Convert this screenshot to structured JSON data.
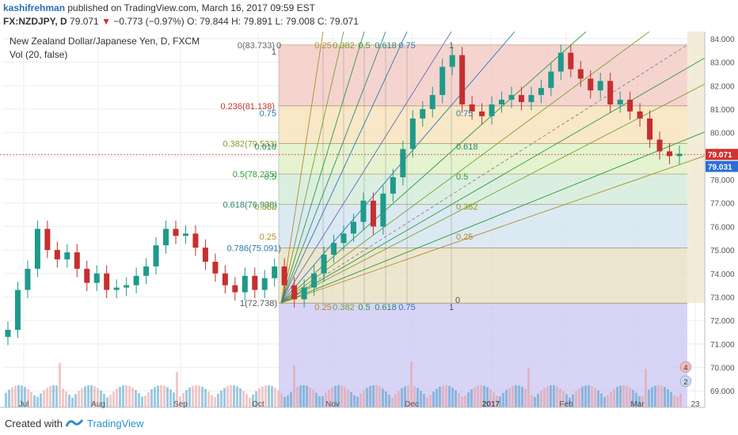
{
  "header": {
    "author": "kashifrehman",
    "published": "published on TradingView.com, March 16, 2017 09:59 EST",
    "symbol": "FX:NZDJPY, D",
    "price": "79.071",
    "change": "−0.773 (−0.97%)",
    "ohlc": "O: 79.844  H: 79.891  L: 79.008  C: 79.071"
  },
  "chart_title": "New Zealand Dollar/Japanese Yen, D, FXCM",
  "vol_label": "Vol (20, false)",
  "footer": {
    "created": "Created with",
    "brand": "TradingView"
  },
  "colors": {
    "up": "#1f9a8a",
    "down": "#c62f30",
    "accent": "#2a8fd0"
  },
  "chart_data": {
    "type": "line",
    "title": "New Zealand Dollar/Japanese Yen, D, FXCM",
    "xlabel": "",
    "ylabel": "",
    "x_ticks": [
      "Jul",
      "Aug",
      "Sep",
      "Oct",
      "Nov",
      "Dec",
      "2017",
      "Jan",
      "Feb",
      "Mar",
      "23"
    ],
    "y_ticks": [
      69,
      70,
      71,
      72,
      73,
      74,
      75,
      76,
      77,
      78,
      79,
      80,
      81,
      82,
      83,
      84
    ],
    "ylim": [
      68.3,
      84.3
    ],
    "last_price": 79.071,
    "bid_price": 79.031,
    "series": [
      {
        "values": [
          71.6,
          73.3,
          74.2,
          75.9,
          75.0,
          74.6,
          74.9,
          74.2,
          73.6,
          74.0,
          73.3,
          73.4,
          73.5,
          73.9,
          74.3,
          75.2,
          75.9,
          75.6,
          75.7,
          75.1,
          74.5,
          74.0,
          73.5,
          73.2,
          73.9,
          73.3,
          73.8,
          74.3,
          73.5,
          72.9,
          73.4,
          74.0,
          74.8,
          75.3,
          75.7,
          76.2,
          77.1,
          76.0,
          77.4,
          78.1,
          79.3,
          80.6,
          81.0,
          81.6,
          82.8,
          83.3,
          81.2,
          80.9,
          80.7,
          81.2,
          81.4,
          81.6,
          81.3,
          81.6,
          81.9,
          82.6,
          83.4,
          82.7,
          82.3,
          81.8,
          82.2,
          81.2,
          81.4,
          80.9,
          80.6,
          79.7,
          79.2,
          79.0,
          79.1
        ]
      }
    ],
    "price_levels": [
      {
        "label": "0(83.733)",
        "value": 83.733
      },
      {
        "label": "0.236(81.138)",
        "value": 81.138
      },
      {
        "label": "0.382(79.533)",
        "value": 79.533
      },
      {
        "label": "0.5(78.235)",
        "value": 78.235
      },
      {
        "label": "0.618(76.938)",
        "value": 76.938
      },
      {
        "label": "0.786(75.091)",
        "value": 75.091
      },
      {
        "label": "1(72.738)",
        "value": 72.738
      }
    ],
    "fan_labels": {
      "top": [
        "0",
        "0.25",
        "0.382",
        "0.5",
        "0.618",
        "0.75",
        "1"
      ],
      "bottom": [
        "0.25",
        "0.382",
        "0.5",
        "0.618",
        "0.75",
        "1",
        "0"
      ],
      "left": [
        "1",
        "0.75",
        "0.618",
        "0.5",
        "0.382",
        "0.25"
      ],
      "mid": [
        "0.75",
        "0.618",
        "0.5",
        "0.382",
        "0.25"
      ]
    },
    "overlay_badges": [
      "4",
      "2"
    ]
  }
}
